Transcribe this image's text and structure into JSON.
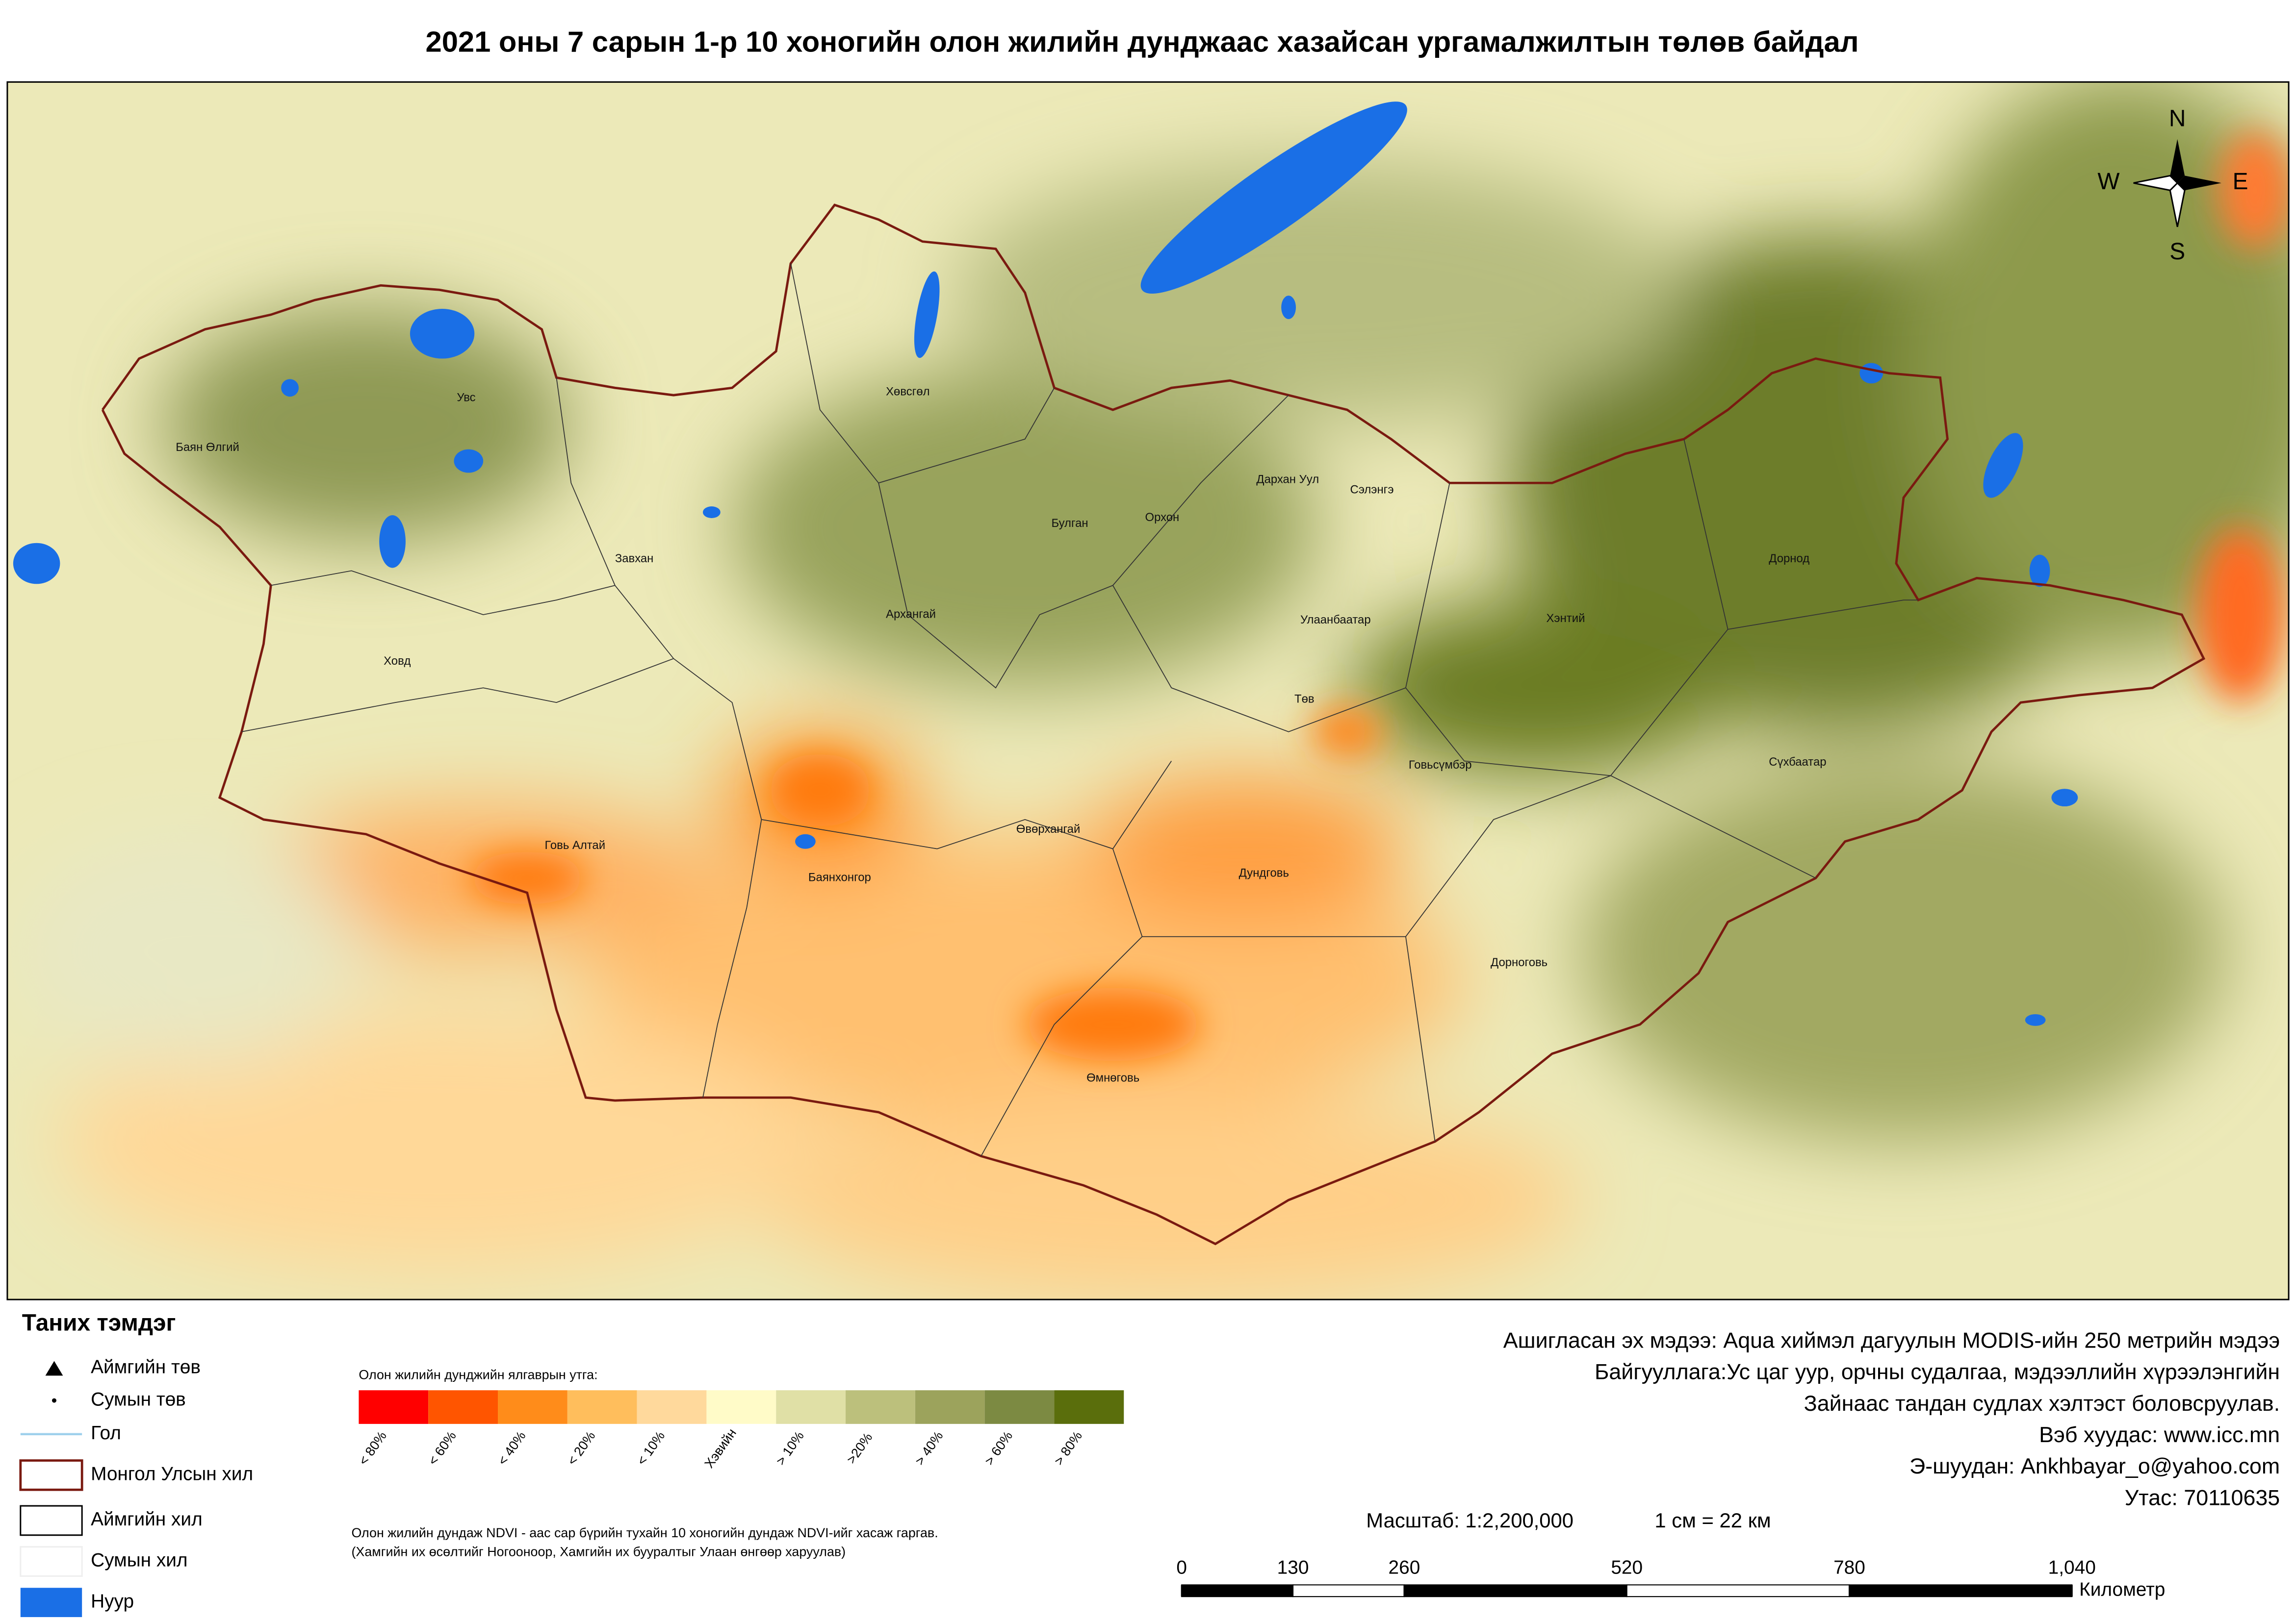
{
  "title": "2021 оны 7 сарын 1-р 10 хоногийн олон жилийн дунджаас хазайсан ургамалжилтын төлөв байдал",
  "places": [
    "Увс",
    "Баян Өлгий",
    "Ховд",
    "Завхан",
    "Хөвсгөл",
    "Булган",
    "Орхон",
    "Дархан Уул",
    "Сэлэнгэ",
    "Архангай",
    "Улаанбаатар",
    "Төв",
    "Хэнтий",
    "Дорнод",
    "Говь Алтай",
    "Баянхонгор",
    "Өвөрхангай",
    "Говьсүмбэр",
    "Дундговь",
    "Сүхбаатар",
    "Дорноговь",
    "Өмнөговь"
  ],
  "compass": {
    "n": "N",
    "s": "S",
    "w": "W",
    "e": "E"
  },
  "legend": {
    "title": "Таних тэмдэг",
    "items": [
      "Аймгийн төв",
      "Сумын төв",
      "Гол",
      "Монгол Улсын хил",
      "Аймгийн хил",
      "Сумын хил",
      "Нуур"
    ]
  },
  "color_scale": {
    "title": "Олон жилийн дунджийн ялгаврын утга:",
    "classes": [
      {
        "label": "< 80%",
        "color": "#ff0000"
      },
      {
        "label": "< 60%",
        "color": "#ff5500"
      },
      {
        "label": "< 40%",
        "color": "#ff8c1a"
      },
      {
        "label": "< 20%",
        "color": "#ffbe5c"
      },
      {
        "label": "< 10%",
        "color": "#ffd99c"
      },
      {
        "label": "Хэвийн",
        "color": "#fffbc8"
      },
      {
        "label": "> 10%",
        "color": "#e0e0a6"
      },
      {
        "label": ">20%",
        "color": "#bcc07c"
      },
      {
        "label": "> 40%",
        "color": "#9ca35c"
      },
      {
        "label": "> 60%",
        "color": "#7c8a42"
      },
      {
        "label": "> 80%",
        "color": "#5a6e0c"
      }
    ],
    "note": [
      "Олон жилийн дундаж NDVI - аас сар бүрийн тухайн 10 хоногийн дундаж NDVI-ийг хасаж гаргав.",
      "(Хамгийн их өсөлтийг Ногооноор,  Хамгийн их бууралтыг Улаан өнгөөр харуулав)"
    ]
  },
  "credits": [
    "Ашигласан эх мэдээ: Aqua хиймэл дагуулын MODIS-ийн 250 метрийн мэдээ",
    "Байгууллага:Ус цаг уур, орчны судалгаа, мэдээллийн хүрээлэнгийн",
    "Зайнаас тандан судлах хэлтэст боловсруулав.",
    "Вэб хуудас: www.icc.mn",
    "Э-шуудан: Ankhbayar_o@yahoo.com",
    "Утас: 70110635"
  ],
  "scale": {
    "text": "Масштаб: 1:2,200,000",
    "equiv": "1 см = 22 км",
    "ticks": [
      0,
      130,
      260,
      520,
      780,
      {
        "value": 1040,
        "label": "1,040"
      }
    ],
    "unit": "Километр"
  }
}
